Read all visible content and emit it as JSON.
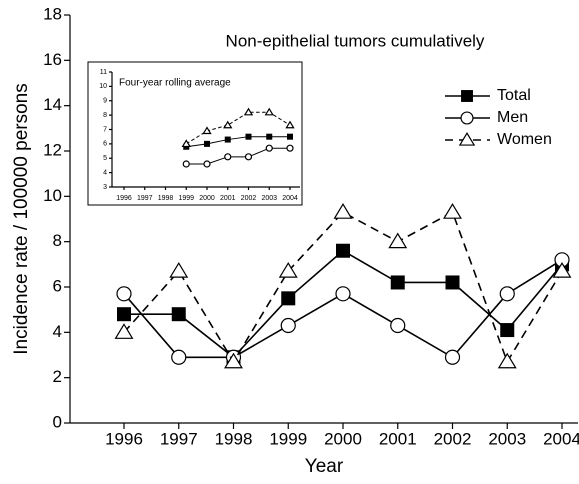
{
  "chart_data": [
    {
      "type": "line",
      "title": "Non-epithelial tumors cumulatively",
      "x_label": "Year",
      "y_label": "Incidence rate / 100000 persons",
      "categories": [
        "1996",
        "1997",
        "1998",
        "1999",
        "2000",
        "2001",
        "2002",
        "2003",
        "2004"
      ],
      "ylim": [
        0,
        18
      ],
      "yticks": [
        0,
        2,
        4,
        6,
        8,
        10,
        12,
        14,
        16,
        18
      ],
      "legend": "upper right",
      "series": [
        {
          "name": "Total",
          "color": "#000000",
          "marker": "square-filled",
          "dash": false,
          "values": [
            4.8,
            4.8,
            2.9,
            5.5,
            7.6,
            6.2,
            6.2,
            4.1,
            7.0
          ]
        },
        {
          "name": "Men",
          "color": "#000000",
          "marker": "circle-open",
          "dash": false,
          "values": [
            5.7,
            2.9,
            2.9,
            4.3,
            5.7,
            4.3,
            2.9,
            5.7,
            7.2
          ]
        },
        {
          "name": "Women",
          "color": "#000000",
          "marker": "triangle-open",
          "dash": true,
          "values": [
            4.0,
            6.7,
            2.7,
            6.7,
            9.3,
            8.0,
            9.3,
            2.7,
            6.7
          ]
        }
      ]
    },
    {
      "type": "line",
      "title": "Four-year rolling average",
      "categories": [
        "1996",
        "1997",
        "1998",
        "1999",
        "2000",
        "2001",
        "2002",
        "2003",
        "2004"
      ],
      "ylim": [
        3,
        11
      ],
      "yticks": [
        3,
        4,
        5,
        6,
        7,
        8,
        9,
        10,
        11
      ],
      "series": [
        {
          "color": "#000000",
          "marker": "square-filled",
          "dash": false,
          "values": [
            null,
            null,
            null,
            5.8,
            6.0,
            6.3,
            6.5,
            6.5,
            6.5
          ]
        },
        {
          "color": "#000000",
          "marker": "circle-open",
          "dash": false,
          "values": [
            null,
            null,
            null,
            4.6,
            4.6,
            5.1,
            5.1,
            5.7,
            5.7
          ]
        },
        {
          "color": "#000000",
          "marker": "triangle-open",
          "dash": true,
          "values": [
            null,
            null,
            null,
            6.0,
            6.9,
            7.3,
            8.2,
            8.2,
            7.3
          ]
        }
      ]
    }
  ]
}
